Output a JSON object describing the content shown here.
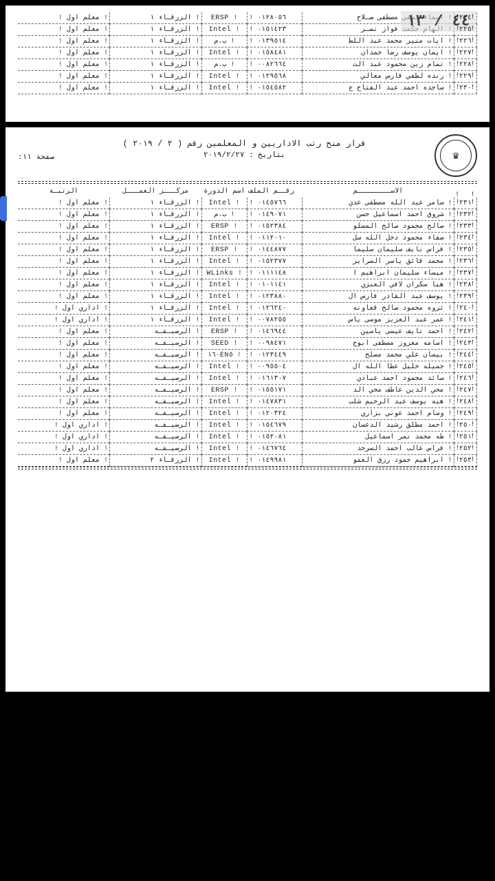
{
  "page_badge": "٤٤ / ١٣",
  "decree": {
    "line1": "قرار   منح رتب الاداريين و  المعلمين رقم  ( ٢ / ٢٠١٩ )",
    "line2": "بتاريخ : ٢٠١٩/٢/٢٧",
    "sheet": "صفحة  ١١:"
  },
  "headers": {
    "idx": "",
    "name": "الاســــــــم",
    "file": "رقــم\nالملف",
    "course": "اسم\nالدورة",
    "center": "مركـــز\nالعمـــل",
    "rank": "الرتبـة"
  },
  "centers": {
    "z1": "الزرقـاء  ١",
    "z2": "الزرقـاء  ٢",
    "rs": "الرصيـفـه"
  },
  "ranks": {
    "t1": "معلم  اول",
    "a1": "اداري اول"
  },
  "top_rows": [
    {
      "i": "٢٢٤",
      "n": "اسماء لطفي مصطفى صـلاح",
      "f": "٠١٢٨٠٥٦",
      "c": "ERSP",
      "cn": "z1",
      "r": "t1"
    },
    {
      "i": "٢٢٥",
      "n": "الهام حكمت فواز نصـر",
      "f": "٠١٥١٤٢٣",
      "c": "Intel",
      "cn": "z1",
      "r": "t1"
    },
    {
      "i": "٢٢٦",
      "n": "ايات منير محمد عبد اللط",
      "f": "٠١٣٩٥١٤",
      "c": "ب.م",
      "cn": "z1",
      "r": "t1"
    },
    {
      "i": "٢٢٧",
      "n": "ايمان يوسف رضا حمدان",
      "f": "٠١٥٨٤٨١",
      "c": "Intel",
      "cn": "z1",
      "r": "t1"
    },
    {
      "i": "٢٢٨",
      "n": "تمام زين محمود عبد الت",
      "f": "٠٠٨٢٦٦٤",
      "c": "ب.م",
      "cn": "z1",
      "r": "t1"
    },
    {
      "i": "٢٢٩",
      "n": "رنده لطفي فارس معالي",
      "f": "٠١٢٩٥٦٨",
      "c": "Intel",
      "cn": "z1",
      "r": "t1"
    },
    {
      "i": "٢٣٠",
      "n": "ساجده احمد عبد الفتاح ع",
      "f": "٠١٥٤٥٨٢",
      "c": "Intel",
      "cn": "z1",
      "r": "t1"
    }
  ],
  "bottom_rows": [
    {
      "i": "٢٣١",
      "n": "سامر عبد الله مصطفى عدي",
      "f": "٠١٤٥٧٦٦",
      "c": "Intel",
      "cn": "z1",
      "r": "t1"
    },
    {
      "i": "٢٣٢",
      "n": "شروق احمد اسماعيل حسن",
      "f": "٠١٤٩٠٧١",
      "c": "ب.م",
      "cn": "z1",
      "r": "t1"
    },
    {
      "i": "٢٣٣",
      "n": "صالح محمود صالح المسلو",
      "f": "٠١٥٢٣٨٤",
      "c": "ERSP",
      "cn": "z1",
      "r": "t1"
    },
    {
      "i": "٢٣٤",
      "n": "صفاء محمود دخل الله سل",
      "f": "٠١١٢٠١٠",
      "c": "Intel",
      "cn": "z1",
      "r": "t1"
    },
    {
      "i": "٢٣٥",
      "n": "فراس نايف سليمان سليما",
      "f": "٠١٤٤٨٧٧",
      "c": "ERSP",
      "cn": "z1",
      "r": "t1"
    },
    {
      "i": "٢٣٦",
      "n": "محمد فائق ياسر الصراير",
      "f": "٠١٥٢٣٧٧",
      "c": "Intel",
      "cn": "z1",
      "r": "t1"
    },
    {
      "i": "٢٣٧",
      "n": "ميساء سليمان ابراهيم ا",
      "f": "٠١١١١٤٨",
      "c": "WLinks",
      "cn": "z1",
      "r": "t1"
    },
    {
      "i": "٢٣٨",
      "n": "هبا سكران لافي العنزي",
      "f": "٠١٠١١٤١",
      "c": "Intel",
      "cn": "z1",
      "r": "t1"
    },
    {
      "i": "٢٣٩",
      "n": "يوسف عبد القادر فارس ال",
      "f": "٠١٢٣٨٨٠",
      "c": "Intel",
      "cn": "z1",
      "r": "t1"
    },
    {
      "i": "٢٤٠",
      "n": "ثروه محمود صالح قعاونه",
      "f": "٠١٢٦٢٤٠",
      "c": "Intel",
      "cn": "z1",
      "r": "a1"
    },
    {
      "i": "٢٤١",
      "n": "عمر عبد العزيز موسى ياس",
      "f": "٠٠٧٨٢٥٥",
      "c": "Intel",
      "cn": "z1",
      "r": "a1"
    },
    {
      "i": "٢٤٢",
      "n": "احمد نايف عيسى ياسين",
      "f": "٠١٤٦٩٤٤",
      "c": "ERSP",
      "cn": "rs",
      "r": "t1"
    },
    {
      "i": "٢٤٣",
      "n": "اسامه معزوز مصطفى ابوج",
      "f": "٠٠٩٨٤٧١",
      "c": "SEED",
      "cn": "rs",
      "r": "t1"
    },
    {
      "i": "٢٤٤",
      "n": "بيسان علي محمد مصلح",
      "f": "٠١٢٣٤٤٩",
      "c": "١٦٠EN٥",
      "cn": "rs",
      "r": "t1"
    },
    {
      "i": "٢٤٥",
      "n": "جميله خليل عطا الله ال",
      "f": "٠٠٩٥٥٠٤",
      "c": "Intel",
      "cn": "rs",
      "r": "t1"
    },
    {
      "i": "٢٤٦",
      "n": "سائد محمود احمد عبادي",
      "f": "٠١٦١٣٠٧",
      "c": "Intel",
      "cn": "rs",
      "r": "t1"
    },
    {
      "i": "٢٤٧",
      "n": "محي الدين عاطف محي الد",
      "f": "٠١٥٥١٧١",
      "c": "ERSP",
      "cn": "rs",
      "r": "t1"
    },
    {
      "i": "٢٤٨",
      "n": "هبه يوسف عبد الرحيم شلب",
      "f": "٠١٤٧٨٣١",
      "c": "Intel",
      "cn": "rs",
      "r": "t1"
    },
    {
      "i": "٢٤٩",
      "n": "وسام احمد عوني بزاري",
      "f": "٠١٢٠٣٢٤",
      "c": "Intel",
      "cn": "rs",
      "r": "t1"
    },
    {
      "i": "٢٥٠",
      "n": "احمد مطلق رشيد الدعسان",
      "f": "٠١٥٤٦٧٩",
      "c": "Intel",
      "cn": "rs",
      "r": "a1"
    },
    {
      "i": "٢٥١",
      "n": "طه محمد نمر اسماعيل",
      "f": "٠١٥٢٠٨١",
      "c": "Intel",
      "cn": "rs",
      "r": "a1"
    },
    {
      "i": "٢٥٢",
      "n": "فراس غالب احمد السرحد",
      "f": "٠١٤٦٧٦٤",
      "c": "Intel",
      "cn": "rs",
      "r": "a1"
    },
    {
      "i": "٢٥٣",
      "n": "ابراهيم حمود رزق العمو",
      "f": "٠١٤٩٩٨١",
      "c": "Intel",
      "cn": "z2",
      "r": "t1"
    }
  ]
}
